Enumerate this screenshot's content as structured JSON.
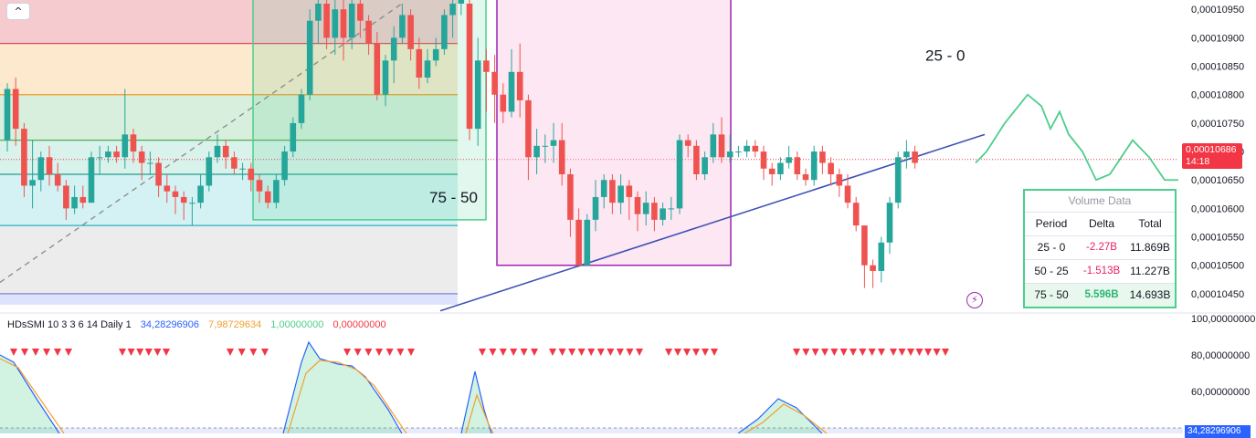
{
  "chart_data": {
    "type": "candlestick",
    "price_axis": {
      "ticks": [
        "0,00010950",
        "0,00010900",
        "0,00010850",
        "0,00010800",
        "0,00010750",
        "0,00010700",
        "0,00010650",
        "0,00010600",
        "0,00010550",
        "0,00010500",
        "0,00010450"
      ],
      "range": [
        0.0001042,
        0.0001096
      ]
    },
    "last_price": {
      "label": "0,00010686",
      "countdown": "14:18",
      "value": 0.00010686
    },
    "candles": [
      [
        0.0001072,
        0.0001081,
        0.000107,
        0.0001082
      ],
      [
        0.0001081,
        0.0001074,
        0.0001071,
        0.0001083
      ],
      [
        0.0001074,
        0.0001064,
        0.0001062,
        0.0001075
      ],
      [
        0.0001064,
        0.0001065,
        0.000106,
        0.0001072
      ],
      [
        0.0001065,
        0.0001069,
        0.0001063,
        0.000107
      ],
      [
        0.0001069,
        0.0001066,
        0.0001064,
        0.0001071
      ],
      [
        0.0001066,
        0.0001064,
        0.0001063,
        0.0001068
      ],
      [
        0.0001064,
        0.000106,
        0.0001058,
        0.0001065
      ],
      [
        0.000106,
        0.0001062,
        0.0001059,
        0.0001064
      ],
      [
        0.0001062,
        0.0001061,
        0.000106,
        0.0001064
      ],
      [
        0.0001061,
        0.0001069,
        0.0001061,
        0.000107
      ],
      [
        0.0001069,
        0.0001069,
        0.0001066,
        0.0001071
      ],
      [
        0.0001069,
        0.000107,
        0.0001068,
        0.0001071
      ],
      [
        0.000107,
        0.0001069,
        0.0001068,
        0.0001071
      ],
      [
        0.0001069,
        0.0001073,
        0.0001067,
        0.0001081
      ],
      [
        0.0001073,
        0.000107,
        0.0001068,
        0.0001074
      ],
      [
        0.000107,
        0.0001068,
        0.0001065,
        0.0001071
      ],
      [
        0.0001068,
        0.0001068,
        0.0001066,
        0.000107
      ],
      [
        0.0001068,
        0.0001064,
        0.0001062,
        0.0001069
      ],
      [
        0.0001064,
        0.0001063,
        0.0001061,
        0.0001066
      ],
      [
        0.0001063,
        0.0001062,
        0.0001059,
        0.0001064
      ],
      [
        0.0001062,
        0.0001061,
        0.0001058,
        0.0001063
      ],
      [
        0.0001061,
        0.0001061,
        0.0001057,
        0.0001062
      ],
      [
        0.0001061,
        0.0001064,
        0.000106,
        0.0001066
      ],
      [
        0.0001064,
        0.0001069,
        0.0001063,
        0.000107
      ],
      [
        0.0001069,
        0.0001071,
        0.0001068,
        0.0001073
      ],
      [
        0.0001071,
        0.0001069,
        0.0001067,
        0.0001072
      ],
      [
        0.0001069,
        0.0001067,
        0.0001066,
        0.000107
      ],
      [
        0.0001067,
        0.0001067,
        0.0001065,
        0.0001068
      ],
      [
        0.0001067,
        0.0001065,
        0.0001063,
        0.0001068
      ],
      [
        0.0001065,
        0.0001063,
        0.0001061,
        0.0001066
      ],
      [
        0.0001063,
        0.0001061,
        0.000106,
        0.0001064
      ],
      [
        0.0001061,
        0.0001065,
        0.000106,
        0.0001066
      ],
      [
        0.0001065,
        0.000107,
        0.0001064,
        0.0001071
      ],
      [
        0.000107,
        0.0001075,
        0.0001069,
        0.0001076
      ],
      [
        0.0001075,
        0.000108,
        0.0001074,
        0.0001081
      ],
      [
        0.000108,
        0.0001093,
        0.0001079,
        0.0001095
      ],
      [
        0.0001093,
        0.0001096,
        0.0001089,
        0.0001097
      ],
      [
        0.0001096,
        0.000109,
        0.0001088,
        0.0001097
      ],
      [
        0.000109,
        0.0001095,
        0.0001087,
        0.0001097
      ],
      [
        0.0001095,
        0.000109,
        0.0001086,
        0.0001097
      ],
      [
        0.000109,
        0.0001096,
        0.0001088,
        0.0001097
      ],
      [
        0.0001096,
        0.0001093,
        0.000109,
        0.0001097
      ],
      [
        0.0001093,
        0.0001089,
        0.0001087,
        0.0001094
      ],
      [
        0.0001089,
        0.000108,
        0.0001079,
        0.0001091
      ],
      [
        0.000108,
        0.0001086,
        0.0001078,
        0.0001087
      ],
      [
        0.0001086,
        0.000109,
        0.0001082,
        0.0001092
      ],
      [
        0.000109,
        0.0001094,
        0.0001089,
        0.0001096
      ],
      [
        0.0001094,
        0.0001088,
        0.0001086,
        0.0001095
      ],
      [
        0.0001088,
        0.0001083,
        0.0001081,
        0.000109
      ],
      [
        0.0001083,
        0.0001086,
        0.0001082,
        0.0001088
      ],
      [
        0.0001086,
        0.0001088,
        0.0001085,
        0.000109
      ],
      [
        0.0001088,
        0.0001094,
        0.0001087,
        0.0001095
      ],
      [
        0.0001094,
        0.0001096,
        0.000109,
        0.0001097
      ],
      [
        0.0001096,
        0.0001097,
        0.0001094,
        0.0001097
      ],
      [
        0.0001096,
        0.0001074,
        0.0001072,
        0.0001097
      ],
      [
        0.0001074,
        0.0001086,
        0.0001071,
        0.000109
      ],
      [
        0.0001086,
        0.0001084,
        0.0001077,
        0.0001088
      ],
      [
        0.0001084,
        0.000108,
        0.0001075,
        0.0001087
      ],
      [
        0.000108,
        0.0001077,
        0.0001075,
        0.0001082
      ],
      [
        0.0001077,
        0.0001084,
        0.0001076,
        0.0001088
      ],
      [
        0.0001084,
        0.0001079,
        0.0001076,
        0.0001089
      ],
      [
        0.0001079,
        0.0001069,
        0.0001065,
        0.000108
      ],
      [
        0.0001069,
        0.0001071,
        0.0001066,
        0.0001074
      ],
      [
        0.0001071,
        0.0001071,
        0.0001068,
        0.0001073
      ],
      [
        0.0001071,
        0.0001072,
        0.0001068,
        0.0001075
      ],
      [
        0.0001072,
        0.0001066,
        0.0001064,
        0.0001075
      ],
      [
        0.0001066,
        0.0001058,
        0.0001055,
        0.0001067
      ],
      [
        0.0001058,
        0.000105,
        0.000105,
        0.000106
      ],
      [
        0.000105,
        0.0001058,
        0.000105,
        0.0001059
      ],
      [
        0.0001058,
        0.0001062,
        0.0001056,
        0.0001065
      ],
      [
        0.0001062,
        0.0001065,
        0.000106,
        0.0001066
      ],
      [
        0.0001065,
        0.0001061,
        0.0001059,
        0.0001066
      ],
      [
        0.0001061,
        0.0001064,
        0.0001059,
        0.0001066
      ],
      [
        0.0001064,
        0.0001062,
        0.0001058,
        0.0001065
      ],
      [
        0.0001062,
        0.0001059,
        0.0001056,
        0.0001063
      ],
      [
        0.0001059,
        0.0001061,
        0.0001057,
        0.0001063
      ],
      [
        0.0001061,
        0.0001058,
        0.0001056,
        0.0001062
      ],
      [
        0.0001058,
        0.000106,
        0.0001057,
        0.0001061
      ],
      [
        0.000106,
        0.000106,
        0.0001058,
        0.0001062
      ],
      [
        0.000106,
        0.0001072,
        0.0001059,
        0.0001073
      ],
      [
        0.0001072,
        0.0001071,
        0.0001069,
        0.0001073
      ],
      [
        0.0001071,
        0.0001066,
        0.0001065,
        0.0001072
      ],
      [
        0.0001066,
        0.0001069,
        0.0001065,
        0.000107
      ],
      [
        0.0001069,
        0.0001073,
        0.0001068,
        0.0001075
      ],
      [
        0.0001073,
        0.0001069,
        0.0001068,
        0.0001076
      ],
      [
        0.0001069,
        0.000107,
        0.0001068,
        0.0001073
      ],
      [
        0.000107,
        0.000107,
        0.0001069,
        0.0001071
      ],
      [
        0.000107,
        0.0001071,
        0.0001069,
        0.0001072
      ],
      [
        0.0001071,
        0.000107,
        0.0001069,
        0.0001072
      ],
      [
        0.000107,
        0.0001067,
        0.0001065,
        0.0001071
      ],
      [
        0.0001067,
        0.0001066,
        0.0001064,
        0.0001068
      ],
      [
        0.0001066,
        0.0001068,
        0.0001065,
        0.0001069
      ],
      [
        0.0001068,
        0.0001069,
        0.0001067,
        0.0001071
      ],
      [
        0.0001069,
        0.0001066,
        0.0001065,
        0.000107
      ],
      [
        0.0001066,
        0.0001065,
        0.0001064,
        0.0001067
      ],
      [
        0.0001065,
        0.000107,
        0.0001064,
        0.0001071
      ],
      [
        0.000107,
        0.0001068,
        0.0001066,
        0.0001071
      ],
      [
        0.0001068,
        0.0001066,
        0.0001064,
        0.0001069
      ],
      [
        0.0001066,
        0.0001064,
        0.0001062,
        0.0001067
      ],
      [
        0.0001064,
        0.0001061,
        0.000106,
        0.0001066
      ],
      [
        0.0001061,
        0.0001057,
        0.0001056,
        0.0001062
      ],
      [
        0.0001057,
        0.000105,
        0.0001046,
        0.0001057
      ],
      [
        0.000105,
        0.0001049,
        0.0001046,
        0.0001051
      ],
      [
        0.0001049,
        0.0001054,
        0.0001047,
        0.0001055
      ],
      [
        0.0001054,
        0.0001061,
        0.0001052,
        0.0001062
      ],
      [
        0.0001061,
        0.0001069,
        0.000106,
        0.000107
      ],
      [
        0.0001069,
        0.000107,
        0.0001067,
        0.0001072
      ],
      [
        0.000107,
        0.0001068,
        0.0001067,
        0.0001071
      ]
    ],
    "zones": [
      {
        "label": "",
        "color": "#f3b9bf",
        "from": 0.0001096,
        "to": 0.0001089
      },
      {
        "label": "",
        "color": "#fbe1bd",
        "from": 0.0001089,
        "to": 0.000108
      },
      {
        "label": "",
        "color": "#c9ead0",
        "from": 0.000108,
        "to": 0.0001072
      },
      {
        "label": "",
        "color": "#cdeee5",
        "from": 0.0001072,
        "to": 0.0001066
      },
      {
        "label": "",
        "color": "#c6eef0",
        "from": 0.0001066,
        "to": 0.0001057
      },
      {
        "label": "",
        "color": "#e5e5e7",
        "from": 0.0001057,
        "to": 0.0001045
      }
    ],
    "boxes": [
      {
        "label": "75 - 50",
        "color": "#4cce8c"
      },
      {
        "label": "",
        "color": "#9c27b0"
      },
      {
        "label": "25 - 0",
        "color": "#9c27b0"
      }
    ],
    "volume_table": {
      "title": "Volume Data",
      "headers": [
        "Period",
        "Delta",
        "Total"
      ],
      "rows": [
        {
          "period": "25 - 0",
          "delta": "-2.27B",
          "total": "11.869B",
          "sign": "neg"
        },
        {
          "period": "50 - 25",
          "delta": "-1.513B",
          "total": "11.227B",
          "sign": "neg"
        },
        {
          "period": "75 - 50",
          "delta": "5.596B",
          "total": "14.693B",
          "sign": "pos"
        }
      ]
    },
    "indicator": {
      "name": "HDsSMI 10 3 3 6 14 Daily 1",
      "values": [
        {
          "text": "34,28296906",
          "color": "#2962ff"
        },
        {
          "text": "7,98729634",
          "color": "#f0a030"
        },
        {
          "text": "1,00000000",
          "color": "#4cce8c"
        },
        {
          "text": "0,00000000",
          "color": "#f23645"
        }
      ],
      "ticks": [
        "100,00000000",
        "80,00000000",
        "60,00000000"
      ],
      "range": [
        37,
        100
      ],
      "bottom_value": "34,28296906",
      "overbought_markers": 60
    },
    "colors": {
      "up": "#26a69a",
      "down": "#ef5350",
      "trendline": "#3f51b5",
      "projection": "#4cce8c"
    }
  },
  "ui": {
    "collapse_icon": "chevron-up-icon",
    "alert_icon": "lightning-icon"
  }
}
